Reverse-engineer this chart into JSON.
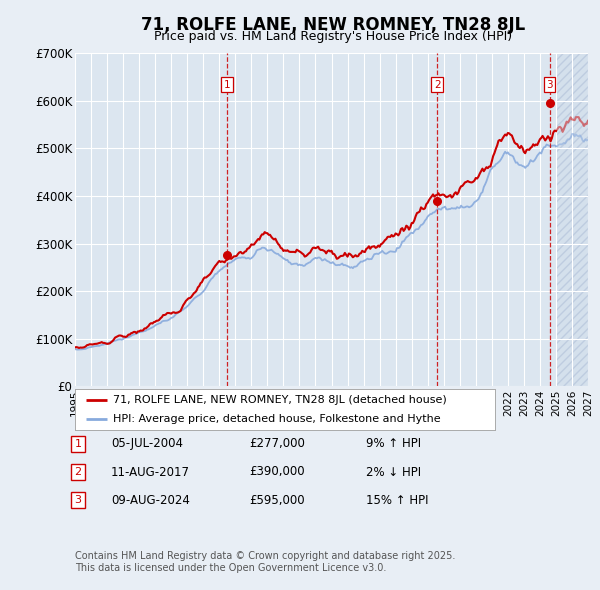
{
  "title": "71, ROLFE LANE, NEW ROMNEY, TN28 8JL",
  "subtitle": "Price paid vs. HM Land Registry's House Price Index (HPI)",
  "bg_color": "#e8eef5",
  "plot_bg_color": "#dce6f0",
  "grid_color": "#ffffff",
  "red_line_color": "#cc0000",
  "blue_line_color": "#88aadd",
  "xmin": 1995,
  "xmax": 2027,
  "ymin": 0,
  "ymax": 700000,
  "yticks": [
    0,
    100000,
    200000,
    300000,
    400000,
    500000,
    600000,
    700000
  ],
  "ytick_labels": [
    "£0",
    "£100K",
    "£200K",
    "£300K",
    "£400K",
    "£500K",
    "£600K",
    "£700K"
  ],
  "purchases": [
    {
      "year": 2004.5,
      "price": 277000,
      "label": "1",
      "date": "05-JUL-2004",
      "pct": "9%",
      "dir": "↑"
    },
    {
      "year": 2017.6,
      "price": 390000,
      "label": "2",
      "date": "11-AUG-2017",
      "pct": "2%",
      "dir": "↓"
    },
    {
      "year": 2024.6,
      "price": 595000,
      "label": "3",
      "date": "09-AUG-2024",
      "pct": "15%",
      "dir": "↑"
    }
  ],
  "legend_label1": "71, ROLFE LANE, NEW ROMNEY, TN28 8JL (detached house)",
  "legend_label2": "HPI: Average price, detached house, Folkestone and Hythe",
  "footer1": "Contains HM Land Registry data © Crown copyright and database right 2025.",
  "footer2": "This data is licensed under the Open Government Licence v3.0.",
  "hpi_future_start": 2025.0
}
